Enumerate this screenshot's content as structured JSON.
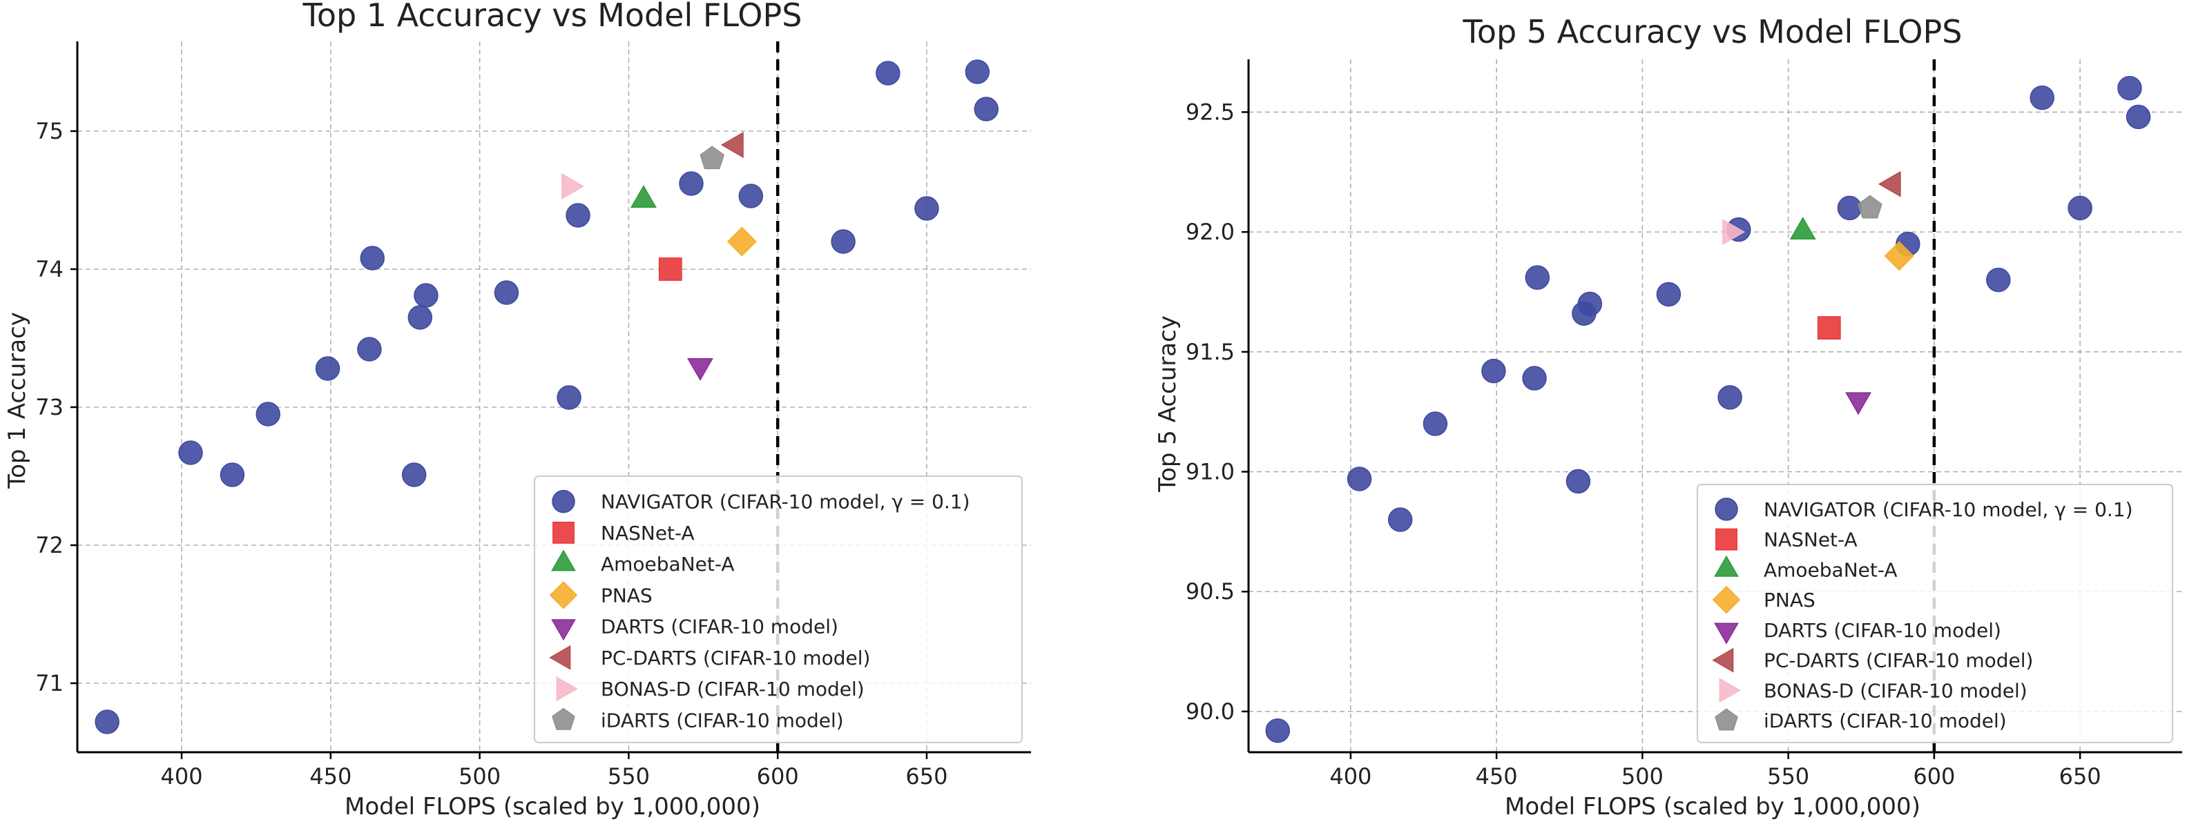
{
  "chart_data": [
    {
      "type": "scatter",
      "title": "Top 1 Accuracy vs Model FLOPS",
      "xlabel": "Model FLOPS (scaled by 1,000,000)",
      "ylabel": "Top 1 Accuracy",
      "xlim": [
        365,
        685
      ],
      "ylim": [
        70.5,
        75.65
      ],
      "xticks": [
        400,
        450,
        500,
        550,
        600,
        650
      ],
      "yticks": [
        71,
        72,
        73,
        74,
        75
      ],
      "ytick_decimals": 0,
      "grid": true,
      "vline": 600,
      "legend_location": "lower-right",
      "series": [
        {
          "name": "NAVIGATOR (CIFAR-10 model, γ = 0.1)",
          "marker": "circle",
          "color": "#3f4aa0",
          "x": [
            375,
            403,
            417,
            429,
            449,
            463,
            464,
            480,
            482,
            478,
            509,
            530,
            533,
            571,
            591,
            622,
            637,
            650,
            667,
            670
          ],
          "y": [
            70.72,
            72.67,
            72.51,
            72.95,
            73.28,
            73.42,
            74.08,
            73.65,
            73.81,
            72.51,
            73.83,
            73.07,
            74.39,
            74.62,
            74.53,
            74.2,
            75.42,
            74.44,
            75.43,
            75.16
          ]
        },
        {
          "name": "NASNet-A",
          "marker": "square",
          "color": "#e8393b",
          "x": [
            564
          ],
          "y": [
            74.0
          ]
        },
        {
          "name": "AmoebaNet-A",
          "marker": "triangle-up",
          "color": "#2e9a3a",
          "x": [
            555
          ],
          "y": [
            74.5
          ]
        },
        {
          "name": "PNAS",
          "marker": "diamond",
          "color": "#f5ae2c",
          "x": [
            588
          ],
          "y": [
            74.2
          ]
        },
        {
          "name": "DARTS (CIFAR-10 model)",
          "marker": "triangle-down",
          "color": "#8b2c99",
          "x": [
            574
          ],
          "y": [
            73.3
          ]
        },
        {
          "name": "PC-DARTS (CIFAR-10 model)",
          "marker": "triangle-left",
          "color": "#b34a4c",
          "x": [
            586
          ],
          "y": [
            74.9
          ]
        },
        {
          "name": "BONAS-D (CIFAR-10 model)",
          "marker": "triangle-right",
          "color": "#f7b8c8",
          "x": [
            530
          ],
          "y": [
            74.6
          ]
        },
        {
          "name": "iDARTS (CIFAR-10 model)",
          "marker": "pentagon",
          "color": "#8f8f8f",
          "x": [
            578
          ],
          "y": [
            74.8
          ]
        }
      ]
    },
    {
      "type": "scatter",
      "title": "Top 5 Accuracy vs Model FLOPS",
      "xlabel": "Model FLOPS (scaled by 1,000,000)",
      "ylabel": "Top 5 Accuracy",
      "xlim": [
        365,
        685
      ],
      "ylim": [
        89.83,
        92.72
      ],
      "xticks": [
        400,
        450,
        500,
        550,
        600,
        650
      ],
      "yticks": [
        90.0,
        90.5,
        91.0,
        91.5,
        92.0,
        92.5
      ],
      "ytick_decimals": 1,
      "grid": true,
      "vline": 600,
      "legend_location": "lower-right",
      "series": [
        {
          "name": "NAVIGATOR (CIFAR-10 model, γ = 0.1)",
          "marker": "circle",
          "color": "#3f4aa0",
          "x": [
            375,
            403,
            417,
            429,
            449,
            463,
            464,
            480,
            482,
            478,
            509,
            530,
            533,
            571,
            591,
            622,
            637,
            650,
            667,
            670
          ],
          "y": [
            89.92,
            90.97,
            90.8,
            91.2,
            91.42,
            91.39,
            91.81,
            91.66,
            91.7,
            90.96,
            91.74,
            91.31,
            92.01,
            92.1,
            91.95,
            91.8,
            92.56,
            92.1,
            92.6,
            92.48
          ]
        },
        {
          "name": "NASNet-A",
          "marker": "square",
          "color": "#e8393b",
          "x": [
            564
          ],
          "y": [
            91.6
          ]
        },
        {
          "name": "AmoebaNet-A",
          "marker": "triangle-up",
          "color": "#2e9a3a",
          "x": [
            555
          ],
          "y": [
            92.0
          ]
        },
        {
          "name": "PNAS",
          "marker": "diamond",
          "color": "#f5ae2c",
          "x": [
            588
          ],
          "y": [
            91.9
          ]
        },
        {
          "name": "DARTS (CIFAR-10 model)",
          "marker": "triangle-down",
          "color": "#8b2c99",
          "x": [
            574
          ],
          "y": [
            91.3
          ]
        },
        {
          "name": "PC-DARTS (CIFAR-10 model)",
          "marker": "triangle-left",
          "color": "#b34a4c",
          "x": [
            586
          ],
          "y": [
            92.2
          ]
        },
        {
          "name": "BONAS-D (CIFAR-10 model)",
          "marker": "triangle-right",
          "color": "#f7b8c8",
          "x": [
            530
          ],
          "y": [
            92.0
          ]
        },
        {
          "name": "iDARTS (CIFAR-10 model)",
          "marker": "pentagon",
          "color": "#8f8f8f",
          "x": [
            578
          ],
          "y": [
            92.1
          ]
        }
      ]
    }
  ]
}
